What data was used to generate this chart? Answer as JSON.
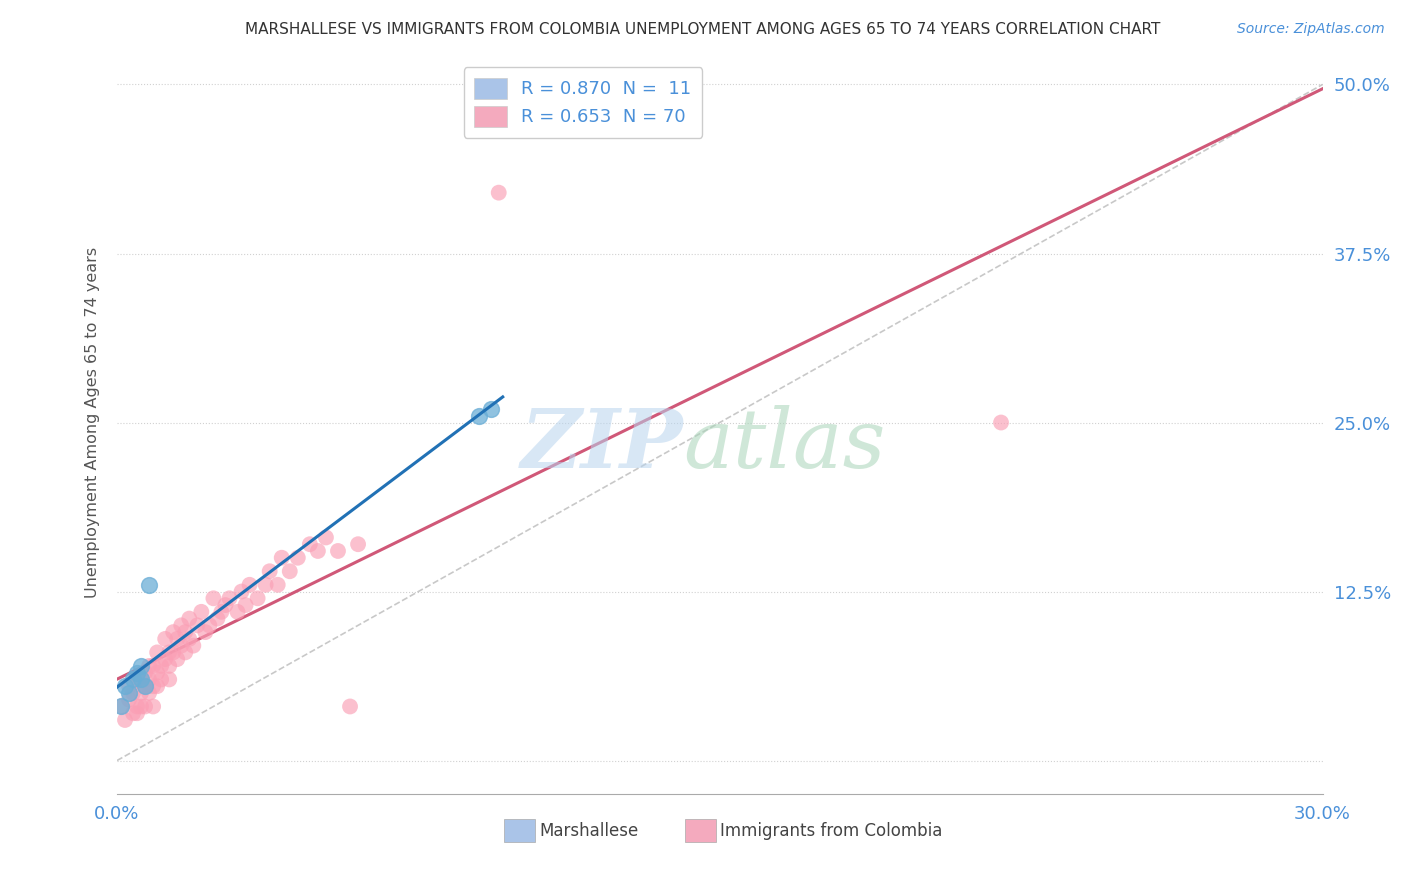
{
  "title": "MARSHALLESE VS IMMIGRANTS FROM COLOMBIA UNEMPLOYMENT AMONG AGES 65 TO 74 YEARS CORRELATION CHART",
  "source": "Source: ZipAtlas.com",
  "ylabel": "Unemployment Among Ages 65 to 74 years",
  "xlim": [
    0.0,
    0.3
  ],
  "ylim": [
    -0.025,
    0.525
  ],
  "legend_entries": [
    {
      "label": "R = 0.870  N =  11",
      "color": "#aac4e8"
    },
    {
      "label": "R = 0.653  N = 70",
      "color": "#f4aabe"
    }
  ],
  "marshallese_x": [
    0.001,
    0.002,
    0.003,
    0.004,
    0.005,
    0.006,
    0.006,
    0.007,
    0.008,
    0.09,
    0.093
  ],
  "marshallese_y": [
    0.04,
    0.055,
    0.05,
    0.06,
    0.065,
    0.07,
    0.06,
    0.055,
    0.13,
    0.255,
    0.26
  ],
  "colombia_x": [
    0.001,
    0.002,
    0.003,
    0.003,
    0.004,
    0.004,
    0.005,
    0.005,
    0.005,
    0.006,
    0.006,
    0.006,
    0.007,
    0.007,
    0.007,
    0.008,
    0.008,
    0.008,
    0.009,
    0.009,
    0.009,
    0.01,
    0.01,
    0.01,
    0.011,
    0.011,
    0.012,
    0.012,
    0.013,
    0.013,
    0.013,
    0.014,
    0.014,
    0.015,
    0.015,
    0.016,
    0.016,
    0.017,
    0.017,
    0.018,
    0.018,
    0.019,
    0.02,
    0.021,
    0.022,
    0.023,
    0.024,
    0.025,
    0.026,
    0.027,
    0.028,
    0.03,
    0.031,
    0.032,
    0.033,
    0.035,
    0.037,
    0.038,
    0.04,
    0.041,
    0.043,
    0.045,
    0.048,
    0.05,
    0.052,
    0.055,
    0.058,
    0.06,
    0.095,
    0.22
  ],
  "colombia_y": [
    0.04,
    0.03,
    0.045,
    0.055,
    0.035,
    0.05,
    0.04,
    0.06,
    0.035,
    0.05,
    0.06,
    0.04,
    0.055,
    0.065,
    0.04,
    0.06,
    0.07,
    0.05,
    0.055,
    0.07,
    0.04,
    0.065,
    0.08,
    0.055,
    0.06,
    0.07,
    0.075,
    0.09,
    0.07,
    0.08,
    0.06,
    0.08,
    0.095,
    0.075,
    0.09,
    0.085,
    0.1,
    0.08,
    0.095,
    0.09,
    0.105,
    0.085,
    0.1,
    0.11,
    0.095,
    0.1,
    0.12,
    0.105,
    0.11,
    0.115,
    0.12,
    0.11,
    0.125,
    0.115,
    0.13,
    0.12,
    0.13,
    0.14,
    0.13,
    0.15,
    0.14,
    0.15,
    0.16,
    0.155,
    0.165,
    0.155,
    0.04,
    0.16,
    0.42,
    0.25
  ],
  "marshallese_color": "#6baed6",
  "colombia_color": "#fa9fb5",
  "marshallese_line_color": "#2171b5",
  "colombia_line_color": "#d05878",
  "diagonal_color": "#bbbbbb",
  "background_color": "#ffffff",
  "grid_color": "#cccccc",
  "tick_color": "#4a90d9",
  "title_color": "#333333",
  "ylabel_color": "#555555"
}
